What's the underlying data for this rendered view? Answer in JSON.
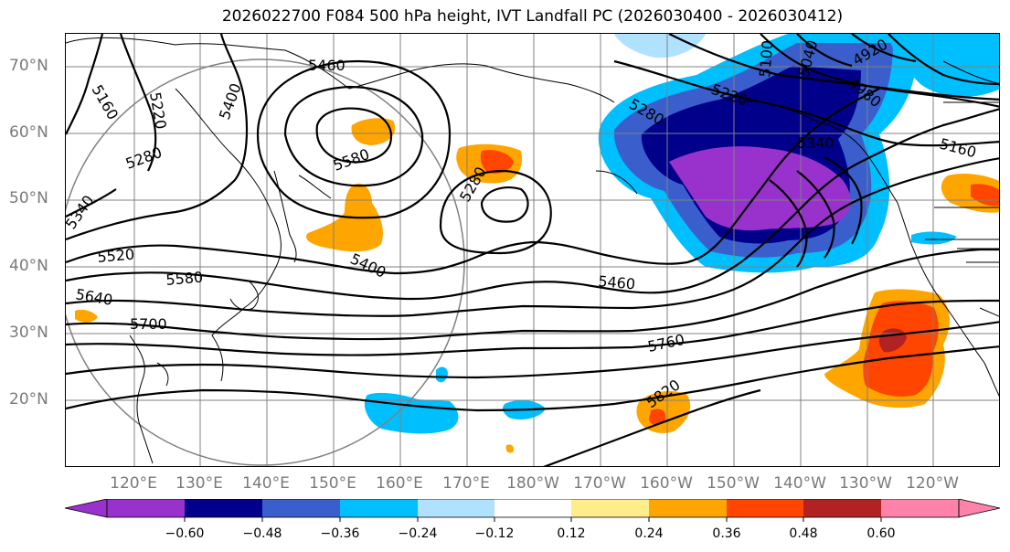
{
  "title": "2026022700 F084 500 hPa height, IVT Landfall PC (2026030400 - 2026030412)",
  "map": {
    "projection_labels": {
      "lat": [
        "70°N",
        "60°N",
        "50°N",
        "40°N",
        "30°N",
        "20°N"
      ],
      "lon": [
        "120°E",
        "130°E",
        "140°E",
        "150°E",
        "160°E",
        "170°E",
        "180°W",
        "170°W",
        "160°W",
        "150°W",
        "140°W",
        "130°W",
        "120°W"
      ]
    },
    "contour_labels": [
      "5460",
      "5400",
      "5160",
      "5220",
      "5280",
      "5340",
      "5580",
      "5520",
      "5580",
      "5640",
      "5700",
      "5280",
      "5400",
      "5460",
      "5760",
      "5820",
      "5280",
      "5220",
      "5100",
      "5040",
      "4920",
      "4980",
      "5160",
      "5340"
    ]
  },
  "colorbar": {
    "ticks": [
      "−0.60",
      "−0.48",
      "−0.36",
      "−0.24",
      "−0.12",
      "0.12",
      "0.24",
      "0.36",
      "0.48",
      "0.60"
    ],
    "colors": [
      "#9932cc",
      "#00008b",
      "#3a5fcd",
      "#00bfff",
      "#b0e2ff",
      "#ffffff",
      "#ffec8b",
      "#ffa500",
      "#ff4500",
      "#b22222",
      "#ff82ab"
    ]
  }
}
